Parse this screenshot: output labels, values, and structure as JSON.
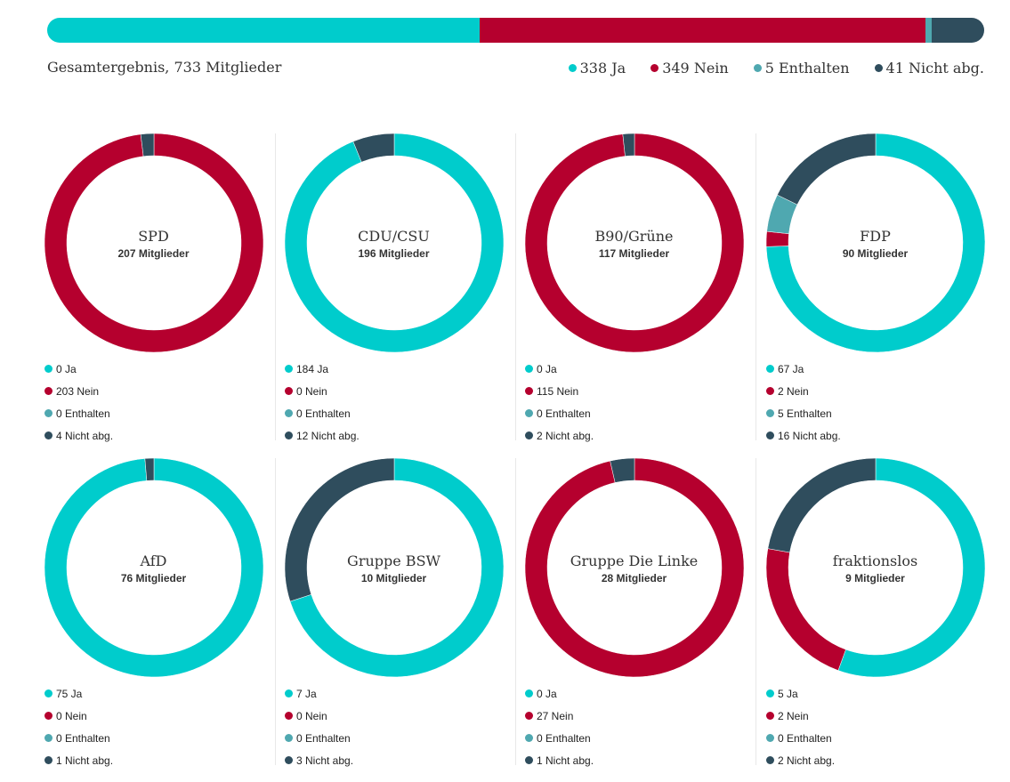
{
  "colors": {
    "ja": "#00cccc",
    "nein": "#b5002e",
    "enthalten": "#4fa8b0",
    "nicht": "#2f4d5d"
  },
  "chart_data": {
    "type": "pie",
    "total": {
      "label": "Gesamtergebnis, 733 Mitglieder",
      "legend": [
        {
          "key": "ja",
          "text": "338 Ja",
          "value": 338
        },
        {
          "key": "nein",
          "text": "349 Nein",
          "value": 349
        },
        {
          "key": "enthalten",
          "text": "5 Enthalten",
          "value": 5
        },
        {
          "key": "nicht",
          "text": "41 Nicht abg.",
          "value": 41
        }
      ]
    },
    "parties": [
      {
        "name": "SPD",
        "members": "207 Mitglieder",
        "ja": 0,
        "nein": 203,
        "enthalten": 0,
        "nicht": 4,
        "labels": [
          "0 Ja",
          "203 Nein",
          "0 Enthalten",
          "4 Nicht abg."
        ]
      },
      {
        "name": "CDU/CSU",
        "members": "196 Mitglieder",
        "ja": 184,
        "nein": 0,
        "enthalten": 0,
        "nicht": 12,
        "labels": [
          "184 Ja",
          "0 Nein",
          "0 Enthalten",
          "12 Nicht abg."
        ]
      },
      {
        "name": "B90/Grüne",
        "members": "117 Mitglieder",
        "ja": 0,
        "nein": 115,
        "enthalten": 0,
        "nicht": 2,
        "labels": [
          "0 Ja",
          "115 Nein",
          "0 Enthalten",
          "2 Nicht abg."
        ]
      },
      {
        "name": "FDP",
        "members": "90 Mitglieder",
        "ja": 67,
        "nein": 2,
        "enthalten": 5,
        "nicht": 16,
        "labels": [
          "67 Ja",
          "2 Nein",
          "5 Enthalten",
          "16 Nicht abg."
        ]
      },
      {
        "name": "AfD",
        "members": "76 Mitglieder",
        "ja": 75,
        "nein": 0,
        "enthalten": 0,
        "nicht": 1,
        "labels": [
          "75 Ja",
          "0 Nein",
          "0 Enthalten",
          "1 Nicht abg."
        ]
      },
      {
        "name": "Gruppe BSW",
        "members": "10 Mitglieder",
        "ja": 7,
        "nein": 0,
        "enthalten": 0,
        "nicht": 3,
        "labels": [
          "7 Ja",
          "0 Nein",
          "0 Enthalten",
          "3 Nicht abg."
        ]
      },
      {
        "name": "Gruppe Die Linke",
        "members": "28 Mitglieder",
        "ja": 0,
        "nein": 27,
        "enthalten": 0,
        "nicht": 1,
        "labels": [
          "0 Ja",
          "27 Nein",
          "0 Enthalten",
          "1 Nicht abg."
        ]
      },
      {
        "name": "fraktionslos",
        "members": "9 Mitglieder",
        "ja": 5,
        "nein": 2,
        "enthalten": 0,
        "nicht": 2,
        "labels": [
          "5 Ja",
          "2 Nein",
          "0 Enthalten",
          "2 Nicht abg."
        ]
      }
    ]
  }
}
